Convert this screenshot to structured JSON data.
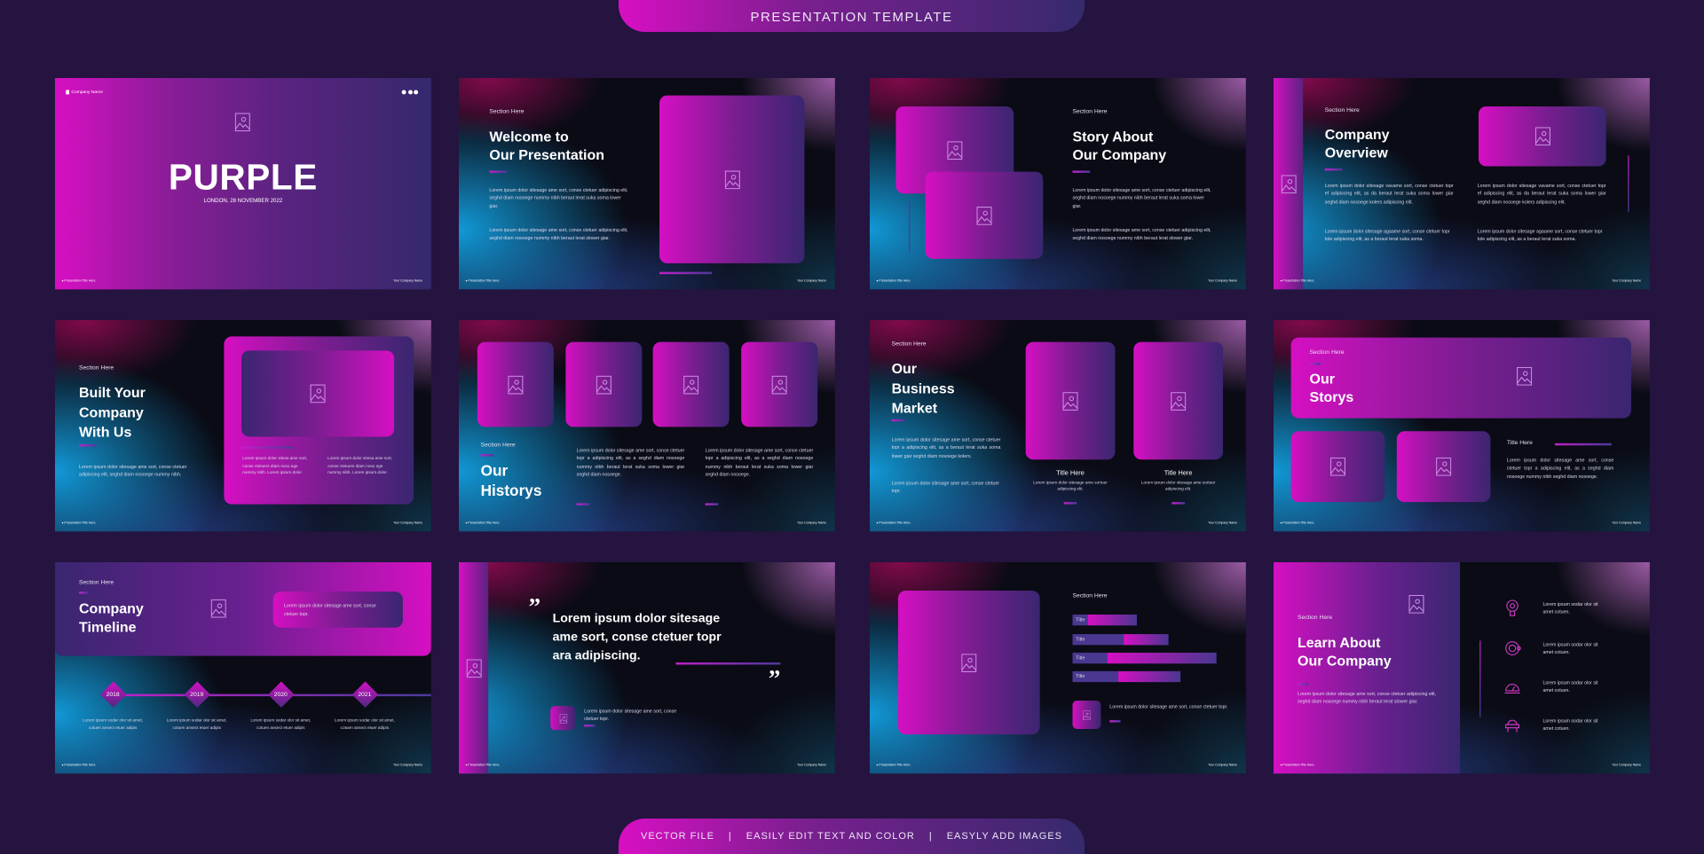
{
  "header": {
    "title": "PRESENTATION TEMPLATE"
  },
  "footer_banner": {
    "items": [
      "VECTOR FILE",
      "|",
      "EASILY EDIT TEXT AND COLOR",
      "|",
      "EASYLY ADD IMAGES"
    ]
  },
  "colors": {
    "background": "#25143f",
    "magenta": "#d60fc3",
    "purple": "#3a2670",
    "blue_glow": "#12a0e1"
  },
  "common": {
    "section": "Section Here",
    "footer_left": "● Presentation Title Here.",
    "footer_right": "Your Company Name",
    "title_here": "Title Here"
  },
  "slides": [
    {
      "company": "Company Name",
      "title": "PURPLE",
      "subtitle": "LONDON, 28 NOVEMBER 2022"
    },
    {
      "title": [
        "Welcome to",
        "Our Presentation"
      ],
      "p1": "Lorem ipsum dolor sitesage ame sort, conse ctetuer adipiscing elit, seghd diam nosoege nummy nibh beraut lerat suka soma lower giar.",
      "p2": "Lorem ipsum dolor sitesage ame sort, conse ctetuer adipiscing elit, seghd diam nosoege nummy nibh beraut lerat slower giar."
    },
    {
      "title": [
        "Story About",
        "Our Company"
      ],
      "p1": "Lorem ipsum dolor sitesage ame sort, conse ctetuer adipiscing elit, seghd diam nosoege nummy nibh beraut lerat suka soma lower giar.",
      "p2": "Lorem ipsum dolor sitesage ame sort, conse ctetuer adipiscing elit, seghd diam nosoege nummy nibh beraut lerat slower giar."
    },
    {
      "title": [
        "Company",
        "Overview"
      ],
      "p1": "Lorem ipsum dolor sitesage vavame sort, conse ctetuer topr ef adipiscing elit, as da beraut lerat suka soma lower giar seghd diam nosoege kolers adipiscing elit.",
      "p2": "Lorem ipsum dolor sitesage agaame sort, conse ctetuer topr tole adipiscing elit, as a beraut lerat suka soma."
    },
    {
      "title": [
        "Built Your",
        "Company",
        "With Us"
      ],
      "p1": "Lorem ipsum dolor sitesage ame sort, conse ctetuer adipiscing elit, seghd diam nosoege nummy nibh.",
      "col": "Lorem ipsum dolor sitesa ame sort, conse ctetuers diam noso ege nummy nibh. Lorem ipsum dolor."
    },
    {
      "title": [
        "Our",
        "Historys"
      ],
      "p1": "Lorem ipsum dolor sitesage ame sort, conse ctetuer topr a adipiscing elit, as a seghd diam nosoege nummy nibh beraut lerat suka soma lower giar seghd diam nosoege."
    },
    {
      "title": [
        "Our",
        "Business",
        "Market"
      ],
      "p1": "Lorem ipsum dolor sitesage ame sort, conse ctetuer topr a adipiscing elit, as a beraut lerat suka soma lower giar seghd diam nosoege kolers.",
      "p2": "Lorem ipsum dolor sitesage ame sort, conse ctetuer topr.",
      "card_desc": "Lorem ipsum dolor sitesage ame sortuer adipiscing elit."
    },
    {
      "title": [
        "Our",
        "Storys"
      ],
      "p1": "Lorem ipsum dolor sitesage ame sort, conse ctetuer topr a adipiscing elit, as a seghd diam nosoege nummy nibh seghd diam nosoege."
    },
    {
      "title": [
        "Company",
        "Timeline"
      ],
      "box": "Lorem ipsum dolor sitesage ame sort, conse ctetuer topr.",
      "years": [
        "2018",
        "2019",
        "2020",
        "2021"
      ],
      "desc": "Lorem ipsum sodar olor sit amet, cotuen ansect etuer adipis"
    },
    {
      "quote": [
        "Lorem ipsum dolor sitesage",
        "ame sort, conse ctetuer topr",
        "ara adipiscing."
      ],
      "open_quote": "”",
      "close_quote": "”",
      "p1": "Lorem ipsum dolor sitesage ame sort, conse ctetuer topr."
    },
    {
      "bars": [
        {
          "label": "Title",
          "level": 0.45
        },
        {
          "label": "Title",
          "level": 0.67
        },
        {
          "label": "Title",
          "level": 1.0
        },
        {
          "label": "Title",
          "level": 0.75
        }
      ],
      "p1": "Lorem ipsum dolor sitesage ame sort, conse ctetuer topr."
    },
    {
      "title": [
        "Learn About",
        "Our Company"
      ],
      "p1": "Lorem ipsum dolor sitesage ame sort, conse ctetuer adipiscing elit, seghd diam nosoege nummy nibh beraut lerat slower giar.",
      "items": [
        {
          "icon": "lightbulb-icon",
          "text": "Lorem ipsum sodar olor sit amet cotuen."
        },
        {
          "icon": "target-icon",
          "text": "Lorem ipsum sodar olor sit amet cotuen."
        },
        {
          "icon": "gauge-icon",
          "text": "Lorem ipsum sodar olor sit amet cotuen."
        },
        {
          "icon": "helmet-icon",
          "text": "Lorem ipsum sodar olor sit amet cotuen."
        }
      ]
    }
  ]
}
